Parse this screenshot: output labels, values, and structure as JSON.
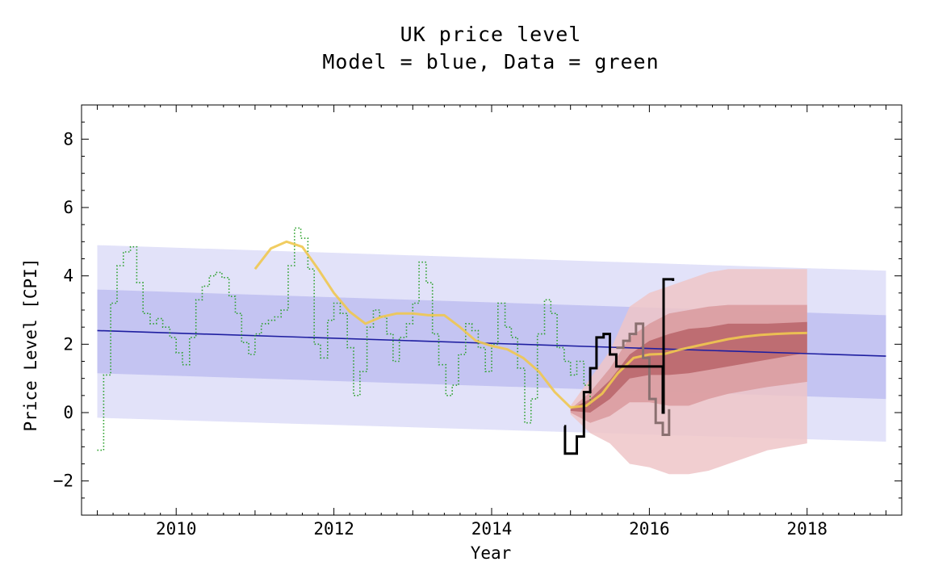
{
  "chart_data": {
    "type": "line",
    "title": "UK price level",
    "subtitle": "Model = blue, Data = green",
    "xlabel": "Year",
    "ylabel": "Price Level [CPI]",
    "xlim": [
      2008.8,
      2019.2
    ],
    "ylim": [
      -3,
      9
    ],
    "x_ticks": [
      2010,
      2012,
      2014,
      2016,
      2018
    ],
    "x_tick_labels": [
      "2010",
      "2012",
      "2014",
      "2016",
      "2018"
    ],
    "y_ticks": [
      -2,
      0,
      2,
      4,
      6,
      8
    ],
    "y_tick_labels": [
      "−2",
      "0",
      "2",
      "4",
      "6",
      "8"
    ],
    "grid": false,
    "colors": {
      "model_line": "#1e1ea0",
      "model_band_outer": "#e2e2f9",
      "model_band_inner": "#c4c4f2",
      "data_green": "#2aa02a",
      "smoothed_yellow": "#f0c850",
      "forecast_outer": "#efc5c8",
      "forecast_mid": "#d99a9e",
      "forecast_inner": "#b86468",
      "recent_black": "#000000",
      "recent_gray": "#8a7070"
    },
    "series": [
      {
        "name": "Model",
        "kind": "line",
        "points": [
          [
            2009.0,
            2.4
          ],
          [
            2019.0,
            1.65
          ]
        ]
      },
      {
        "kind": "band",
        "x": [
          2009.0,
          2019.0
        ],
        "lower": [
          -0.15,
          -0.85
        ],
        "upper": [
          4.9,
          4.15
        ]
      },
      {
        "kind": "band",
        "x": [
          2009.0,
          2019.0
        ],
        "lower": [
          1.15,
          0.4
        ],
        "upper": [
          3.6,
          2.85
        ]
      },
      {
        "name": "Data",
        "kind": "step",
        "points": [
          [
            2009.0,
            -1.1
          ],
          [
            2009.08,
            1.1
          ],
          [
            2009.17,
            3.2
          ],
          [
            2009.25,
            4.3
          ],
          [
            2009.33,
            4.7
          ],
          [
            2009.42,
            4.85
          ],
          [
            2009.5,
            3.8
          ],
          [
            2009.58,
            2.9
          ],
          [
            2009.67,
            2.6
          ],
          [
            2009.75,
            2.75
          ],
          [
            2009.83,
            2.5
          ],
          [
            2009.92,
            2.2
          ],
          [
            2010.0,
            1.75
          ],
          [
            2010.08,
            1.4
          ],
          [
            2010.17,
            2.2
          ],
          [
            2010.25,
            3.3
          ],
          [
            2010.33,
            3.7
          ],
          [
            2010.42,
            4.0
          ],
          [
            2010.5,
            4.1
          ],
          [
            2010.58,
            3.95
          ],
          [
            2010.67,
            3.4
          ],
          [
            2010.75,
            2.9
          ],
          [
            2010.83,
            2.05
          ],
          [
            2010.92,
            1.7
          ],
          [
            2011.0,
            2.3
          ],
          [
            2011.08,
            2.6
          ],
          [
            2011.17,
            2.7
          ],
          [
            2011.25,
            2.8
          ],
          [
            2011.33,
            3.0
          ],
          [
            2011.42,
            4.3
          ],
          [
            2011.5,
            5.4
          ],
          [
            2011.58,
            5.1
          ],
          [
            2011.67,
            4.2
          ],
          [
            2011.75,
            2.0
          ],
          [
            2011.83,
            1.6
          ],
          [
            2011.92,
            2.7
          ],
          [
            2012.0,
            3.2
          ],
          [
            2012.08,
            2.9
          ],
          [
            2012.17,
            1.9
          ],
          [
            2012.25,
            0.5
          ],
          [
            2012.33,
            1.2
          ],
          [
            2012.42,
            2.5
          ],
          [
            2012.5,
            3.0
          ],
          [
            2012.58,
            2.8
          ],
          [
            2012.67,
            2.3
          ],
          [
            2012.75,
            1.5
          ],
          [
            2012.83,
            2.2
          ],
          [
            2012.92,
            2.6
          ],
          [
            2013.0,
            3.2
          ],
          [
            2013.08,
            4.4
          ],
          [
            2013.17,
            3.8
          ],
          [
            2013.25,
            2.3
          ],
          [
            2013.33,
            1.4
          ],
          [
            2013.42,
            0.5
          ],
          [
            2013.5,
            0.8
          ],
          [
            2013.58,
            1.7
          ],
          [
            2013.67,
            2.6
          ],
          [
            2013.75,
            2.4
          ],
          [
            2013.83,
            1.9
          ],
          [
            2013.92,
            1.2
          ],
          [
            2014.0,
            2.0
          ],
          [
            2014.08,
            3.2
          ],
          [
            2014.17,
            2.5
          ],
          [
            2014.25,
            2.2
          ],
          [
            2014.33,
            1.3
          ],
          [
            2014.42,
            -0.3
          ],
          [
            2014.5,
            0.4
          ],
          [
            2014.58,
            2.3
          ],
          [
            2014.67,
            3.3
          ],
          [
            2014.75,
            2.9
          ],
          [
            2014.83,
            1.9
          ],
          [
            2014.92,
            1.5
          ],
          [
            2015.0,
            1.1
          ],
          [
            2015.08,
            1.5
          ],
          [
            2015.17,
            0.8
          ],
          [
            2015.25,
            0.2
          ]
        ]
      },
      {
        "kind": "line",
        "points": [
          [
            2011.0,
            4.2
          ],
          [
            2011.2,
            4.8
          ],
          [
            2011.4,
            5.0
          ],
          [
            2011.6,
            4.85
          ],
          [
            2011.8,
            4.2
          ],
          [
            2012.0,
            3.5
          ],
          [
            2012.2,
            2.95
          ],
          [
            2012.4,
            2.6
          ],
          [
            2012.6,
            2.8
          ],
          [
            2012.8,
            2.9
          ],
          [
            2013.0,
            2.9
          ],
          [
            2013.2,
            2.85
          ],
          [
            2013.4,
            2.85
          ],
          [
            2013.6,
            2.5
          ],
          [
            2013.8,
            2.1
          ],
          [
            2014.0,
            1.95
          ],
          [
            2014.2,
            1.85
          ],
          [
            2014.4,
            1.6
          ],
          [
            2014.6,
            1.2
          ],
          [
            2014.8,
            0.6
          ],
          [
            2015.0,
            0.15
          ],
          [
            2015.2,
            0.2
          ],
          [
            2015.4,
            0.55
          ],
          [
            2015.6,
            1.15
          ],
          [
            2015.8,
            1.6
          ],
          [
            2016.0,
            1.7
          ],
          [
            2016.2,
            1.72
          ],
          [
            2016.4,
            1.85
          ],
          [
            2016.6,
            1.95
          ],
          [
            2016.8,
            2.05
          ],
          [
            2017.0,
            2.15
          ],
          [
            2017.2,
            2.22
          ],
          [
            2017.4,
            2.27
          ],
          [
            2017.6,
            2.3
          ],
          [
            2017.8,
            2.32
          ],
          [
            2018.0,
            2.33
          ]
        ]
      },
      {
        "kind": "forecast_band",
        "x": [
          2015.0,
          2015.25,
          2015.5,
          2015.75,
          2016.0,
          2016.25,
          2016.5,
          2016.75,
          2017.0,
          2017.5,
          2018.0
        ],
        "outer_lower": [
          -0.05,
          -0.6,
          -0.9,
          -1.5,
          -1.6,
          -1.8,
          -1.8,
          -1.7,
          -1.5,
          -1.1,
          -0.9
        ],
        "outer_upper": [
          0.2,
          1.0,
          1.8,
          3.1,
          3.5,
          3.7,
          3.9,
          4.1,
          4.2,
          4.2,
          4.2
        ],
        "mid_lower": [
          0.0,
          -0.3,
          -0.1,
          0.3,
          0.3,
          0.2,
          0.2,
          0.4,
          0.55,
          0.75,
          0.9
        ],
        "mid_upper": [
          0.1,
          0.6,
          1.3,
          2.2,
          2.6,
          2.9,
          3.0,
          3.1,
          3.15,
          3.15,
          3.15
        ],
        "inner_lower": [
          0.05,
          0.0,
          0.4,
          1.0,
          1.1,
          1.1,
          1.15,
          1.25,
          1.35,
          1.55,
          1.75
        ],
        "inner_upper": [
          0.1,
          0.4,
          0.95,
          1.7,
          2.1,
          2.3,
          2.45,
          2.5,
          2.6,
          2.6,
          2.65
        ]
      },
      {
        "kind": "step",
        "points": [
          [
            2014.92,
            -0.4
          ],
          [
            2014.93,
            -1.2
          ],
          [
            2015.08,
            -0.7
          ],
          [
            2015.17,
            0.6
          ],
          [
            2015.25,
            1.3
          ],
          [
            2015.33,
            2.2
          ],
          [
            2015.42,
            2.3
          ],
          [
            2015.5,
            1.7
          ],
          [
            2015.58,
            1.35
          ],
          [
            2016.17,
            0.0
          ],
          [
            2016.18,
            3.9
          ],
          [
            2016.3,
            3.85
          ]
        ]
      },
      {
        "kind": "step",
        "points": [
          [
            2015.58,
            1.9
          ],
          [
            2015.67,
            2.1
          ],
          [
            2015.75,
            2.3
          ],
          [
            2015.83,
            2.6
          ],
          [
            2015.92,
            1.6
          ],
          [
            2016.0,
            0.4
          ],
          [
            2016.08,
            -0.3
          ],
          [
            2016.17,
            -0.65
          ],
          [
            2016.25,
            0.1
          ]
        ]
      }
    ]
  }
}
